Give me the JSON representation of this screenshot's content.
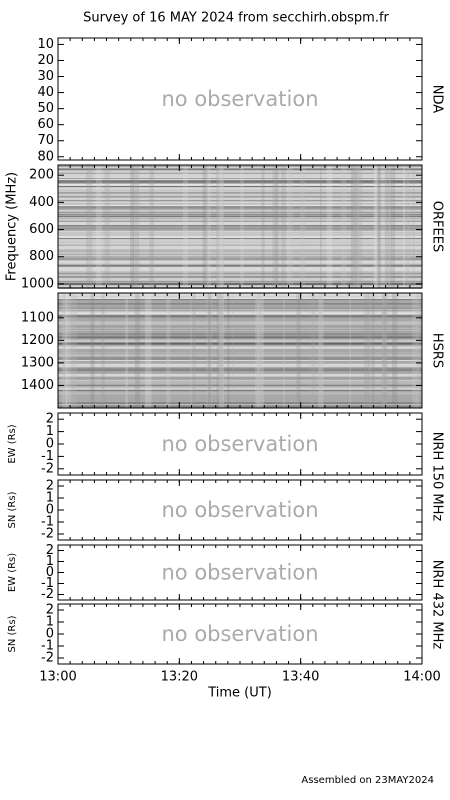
{
  "title": "Survey of 16 MAY 2024 from secchirh.obspm.fr",
  "footer": "Assembled on 23MAY2024",
  "side_labels": [
    "NRH 150 MHz",
    "NRH 432 MHz"
  ],
  "time_axis": {
    "xlabel": "Time (UT)",
    "xlim": [
      "2024-05-16T13:00",
      "2024-05-16T14:00"
    ],
    "xticks": [
      {
        "value": "2024-05-16T13:00",
        "label": "13:00"
      },
      {
        "value": "2024-05-16T13:20",
        "label": "13:20"
      },
      {
        "value": "2024-05-16T13:40",
        "label": "13:40"
      },
      {
        "value": "2024-05-16T14:00",
        "label": "14:00"
      }
    ]
  },
  "chart_data": [
    {
      "type": "empty",
      "side_label": "NDA",
      "annotation": "no observation",
      "ylim": [
        6,
        82
      ],
      "y_inverted": true,
      "yticks": [
        10,
        20,
        30,
        40,
        50,
        60,
        70,
        80
      ]
    },
    {
      "type": "spectrogram",
      "side_label": "ORFEES",
      "ylabel": "Frequency (MHz)",
      "ylim": [
        125,
        1030
      ],
      "y_inverted": true,
      "yticks": [
        200,
        400,
        600,
        800,
        1000
      ]
    },
    {
      "type": "spectrogram",
      "side_label": "HSRS",
      "ylim": [
        990,
        1500
      ],
      "y_inverted": true,
      "yticks": [
        1100,
        1200,
        1300,
        1400
      ]
    },
    {
      "type": "empty",
      "ylabel": "EW (Rs)",
      "annotation": "no observation",
      "ylim": [
        -2.5,
        2.5
      ],
      "yticks": [
        -2,
        -1,
        0,
        1,
        2
      ]
    },
    {
      "type": "empty",
      "ylabel": "SN (Rs)",
      "annotation": "no observation",
      "ylim": [
        -2.5,
        2.5
      ],
      "yticks": [
        -2,
        -1,
        0,
        1,
        2
      ]
    },
    {
      "type": "empty",
      "ylabel": "EW (Rs)",
      "annotation": "no observation",
      "ylim": [
        -2.5,
        2.5
      ],
      "yticks": [
        -2,
        -1,
        0,
        1,
        2
      ]
    },
    {
      "type": "empty",
      "ylabel": "SN (Rs)",
      "annotation": "no observation",
      "ylim": [
        -2.5,
        2.5
      ],
      "yticks": [
        -2,
        -1,
        0,
        1,
        2
      ]
    }
  ]
}
